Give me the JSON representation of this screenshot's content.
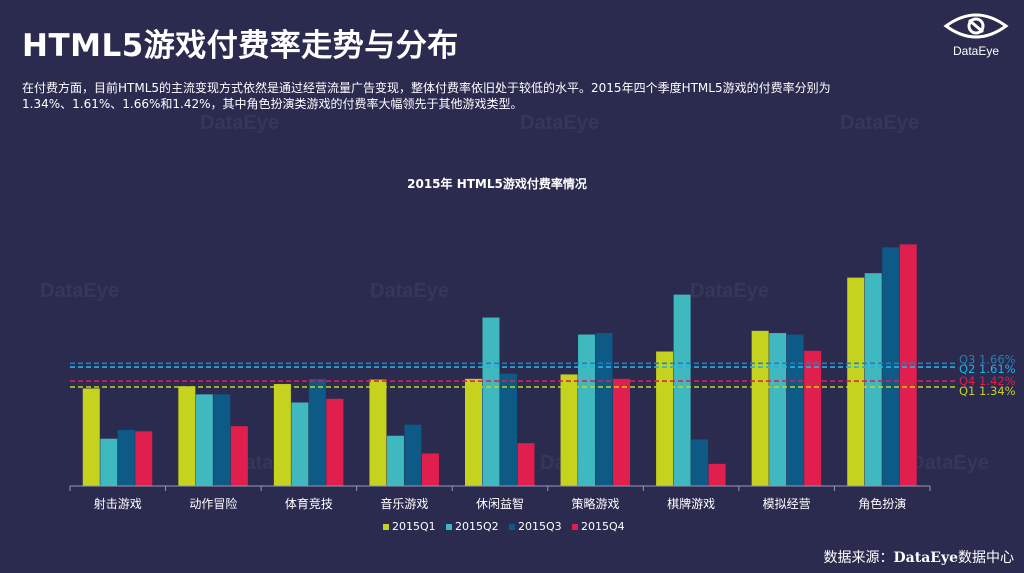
{
  "header": {
    "title": "HTML5游戏付费率走势与分布",
    "logo_text": "DataEye"
  },
  "description": {
    "line1": "在付费方面，目前HTML5的主流变现方式依然是通过经营流量广告变现，整体付费率依旧处于较低的水平。2015年四个季度HTML5游戏的付费率分别为",
    "line2": "1.34%、1.61%、1.66%和1.42%，其中角色扮演类游戏的付费率大幅领先于其他游戏类型。"
  },
  "watermark_text": "DataEye",
  "source": {
    "prefix": "数据来源：",
    "brand": "DataEye",
    "suffix": "数据中心"
  },
  "colors": {
    "q1": "#c5d31f",
    "q2": "#3fb8c0",
    "q3": "#0d5a86",
    "q4": "#e01f4e",
    "q3_line": "#2a7fb0",
    "q2_line": "#1fb6e8"
  },
  "chart_data": {
    "type": "bar",
    "title": "2015年 HTML5游戏付费率情况",
    "categories": [
      "射击游戏",
      "动作冒险",
      "体育竞技",
      "音乐游戏",
      "休闲益智",
      "策略游戏",
      "棋牌游戏",
      "模拟经营",
      "角色扮演"
    ],
    "series": [
      {
        "name": "2015Q1",
        "values": [
          1.32,
          1.35,
          1.38,
          1.44,
          1.45,
          1.51,
          1.82,
          2.1,
          2.82
        ]
      },
      {
        "name": "2015Q2",
        "values": [
          0.64,
          1.24,
          1.13,
          0.68,
          2.28,
          2.05,
          2.59,
          2.07,
          2.88
        ]
      },
      {
        "name": "2015Q3",
        "values": [
          0.76,
          1.24,
          1.45,
          0.83,
          1.52,
          2.07,
          0.63,
          2.05,
          3.23
        ]
      },
      {
        "name": "2015Q4",
        "values": [
          0.74,
          0.81,
          1.18,
          0.44,
          0.58,
          1.45,
          0.3,
          1.83,
          3.27
        ]
      }
    ],
    "reference_lines": [
      {
        "label": "Q3 1.66%",
        "value": 1.66,
        "series": "2015Q3"
      },
      {
        "label": "Q2 1.61%",
        "value": 1.61,
        "series": "2015Q2"
      },
      {
        "label": "Q4 1.42%",
        "value": 1.42,
        "series": "2015Q4"
      },
      {
        "label": "Q1 1.34%",
        "value": 1.34,
        "series": "2015Q1"
      }
    ],
    "ylim": [
      0,
      3.6
    ],
    "legend_position": "bottom",
    "grid": false
  }
}
